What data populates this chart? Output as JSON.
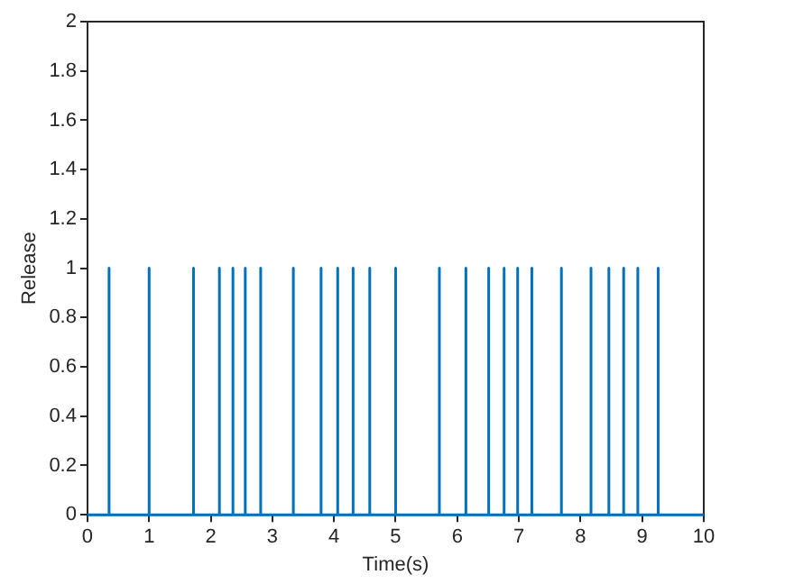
{
  "chart_data": {
    "type": "line",
    "xlabel": "Time(s)",
    "ylabel": "Release",
    "x": [
      0,
      0.35,
      0.35,
      0.35,
      1.0,
      1.0,
      1.0,
      1.72,
      1.72,
      1.72,
      2.14,
      2.14,
      2.14,
      2.36,
      2.36,
      2.36,
      2.56,
      2.56,
      2.56,
      2.81,
      2.81,
      2.81,
      3.34,
      3.34,
      3.34,
      3.79,
      3.79,
      3.79,
      4.06,
      4.06,
      4.06,
      4.31,
      4.31,
      4.31,
      4.58,
      4.58,
      4.58,
      5.0,
      5.0,
      5.0,
      5.71,
      5.71,
      5.71,
      6.14,
      6.14,
      6.14,
      6.51,
      6.51,
      6.51,
      6.76,
      6.76,
      6.76,
      6.98,
      6.98,
      6.98,
      7.21,
      7.21,
      7.21,
      7.69,
      7.69,
      7.69,
      8.17,
      8.17,
      8.17,
      8.46,
      8.46,
      8.46,
      8.7,
      8.7,
      8.7,
      8.93,
      8.93,
      8.93,
      9.26,
      9.26,
      9.26,
      10
    ],
    "series": [
      {
        "color": "#0072bd",
        "values": [
          0,
          0,
          1,
          0,
          0,
          1,
          0,
          0,
          1,
          0,
          0,
          1,
          0,
          0,
          1,
          0,
          0,
          1,
          0,
          0,
          1,
          0,
          0,
          1,
          0,
          0,
          1,
          0,
          0,
          1,
          0,
          0,
          1,
          0,
          0,
          1,
          0,
          0,
          1,
          0,
          0,
          1,
          0,
          0,
          1,
          0,
          0,
          1,
          0,
          0,
          1,
          0,
          0,
          1,
          0,
          0,
          1,
          0,
          0,
          1,
          0,
          0,
          1,
          0,
          0,
          1,
          0,
          0,
          1,
          0,
          0,
          1,
          0,
          0,
          1,
          0,
          0
        ]
      }
    ],
    "xlim": [
      0,
      10
    ],
    "xticks": [
      0,
      1,
      2,
      3,
      4,
      5,
      6,
      7,
      8,
      9,
      10
    ],
    "ylim": [
      0,
      2
    ],
    "yticks": [
      0,
      0.2,
      0.4,
      0.6,
      0.8,
      1,
      1.2,
      1.4,
      1.6,
      1.8,
      2
    ],
    "grid": false,
    "legend": false,
    "marker": "none",
    "line_style": "solid"
  }
}
